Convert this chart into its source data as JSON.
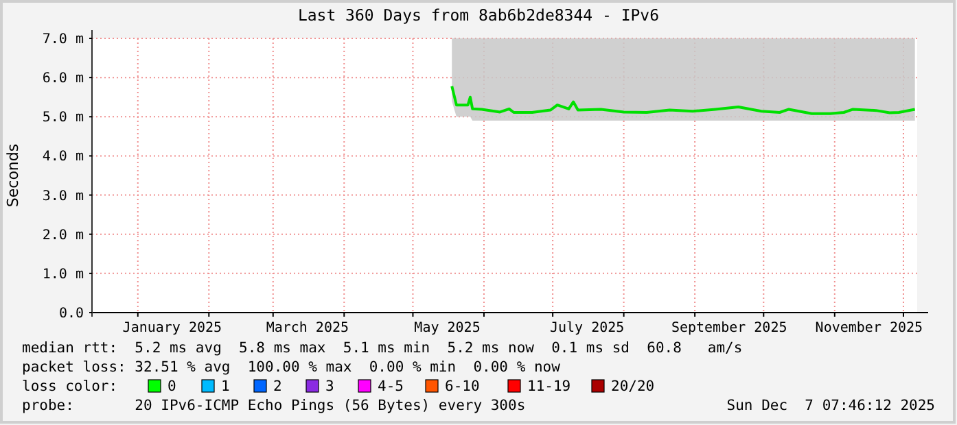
{
  "chart_data": {
    "type": "line",
    "title": "Last 360 Days from 8ab6b2de8344 - IPv6",
    "ylabel": "Seconds",
    "xlim": [
      "2024-12-12",
      "2025-12-07"
    ],
    "xticks": [
      {
        "value": "2025-01-01",
        "label": null
      },
      {
        "value": "2025-01-16",
        "label": "January 2025"
      },
      {
        "value": "2025-02-01",
        "label": null
      },
      {
        "value": "2025-03-01",
        "label": null
      },
      {
        "value": "2025-03-16",
        "label": "March 2025"
      },
      {
        "value": "2025-04-01",
        "label": null
      },
      {
        "value": "2025-05-01",
        "label": null
      },
      {
        "value": "2025-05-16",
        "label": "May 2025"
      },
      {
        "value": "2025-06-01",
        "label": null
      },
      {
        "value": "2025-07-01",
        "label": null
      },
      {
        "value": "2025-07-16",
        "label": "July 2025"
      },
      {
        "value": "2025-08-01",
        "label": null
      },
      {
        "value": "2025-09-01",
        "label": null
      },
      {
        "value": "2025-09-16",
        "label": "September 2025"
      },
      {
        "value": "2025-10-01",
        "label": null
      },
      {
        "value": "2025-11-01",
        "label": null
      },
      {
        "value": "2025-11-16",
        "label": "November 2025"
      },
      {
        "value": "2025-12-01",
        "label": null
      }
    ],
    "ylim": [
      0,
      7
    ],
    "yticks": [
      {
        "value": 0,
        "label": "0.0"
      },
      {
        "value": 1,
        "label": "1.0 m"
      },
      {
        "value": 2,
        "label": "2.0 m"
      },
      {
        "value": 3,
        "label": "3.0 m"
      },
      {
        "value": 4,
        "label": "4.0 m"
      },
      {
        "value": 5,
        "label": "5.0 m"
      },
      {
        "value": 6,
        "label": "6.0 m"
      },
      {
        "value": 7,
        "label": "7.0 m"
      }
    ],
    "grid": true,
    "line_style": "solid",
    "marker": "none",
    "x": [
      "2025-05-18",
      "2025-05-20",
      "2025-05-25",
      "2025-05-26",
      "2025-05-27",
      "2025-05-31",
      "2025-06-08",
      "2025-06-12",
      "2025-06-14",
      "2025-06-22",
      "2025-06-30",
      "2025-07-03",
      "2025-07-08",
      "2025-07-10",
      "2025-07-12",
      "2025-07-22",
      "2025-08-01",
      "2025-08-11",
      "2025-08-21",
      "2025-08-31",
      "2025-09-10",
      "2025-09-20",
      "2025-09-30",
      "2025-10-08",
      "2025-10-12",
      "2025-10-20",
      "2025-10-22",
      "2025-10-30",
      "2025-11-05",
      "2025-11-09",
      "2025-11-19",
      "2025-11-25",
      "2025-11-29",
      "2025-12-06"
    ],
    "series": [
      {
        "color": "#00e000",
        "values": [
          5.78,
          5.3,
          5.3,
          5.5,
          5.2,
          5.19,
          5.12,
          5.2,
          5.11,
          5.11,
          5.17,
          5.3,
          5.2,
          5.38,
          5.17,
          5.19,
          5.12,
          5.11,
          5.17,
          5.14,
          5.19,
          5.25,
          5.14,
          5.11,
          5.19,
          5.1,
          5.08,
          5.08,
          5.11,
          5.19,
          5.16,
          5.1,
          5.11,
          5.19
        ],
        "lower": [
          5.4,
          5.0,
          5.0,
          5.0,
          4.9,
          4.9,
          4.9,
          4.9,
          4.9,
          4.9,
          4.9,
          4.9,
          4.9,
          4.9,
          4.9,
          4.9,
          4.9,
          4.9,
          4.9,
          4.9,
          4.9,
          4.9,
          4.9,
          4.9,
          4.9,
          4.9,
          4.9,
          4.9,
          4.9,
          4.9,
          4.9,
          4.9,
          4.9,
          4.9
        ],
        "upper": [
          7,
          7,
          7,
          7,
          7,
          7,
          7,
          7,
          7,
          7,
          7,
          7,
          7,
          7,
          7,
          7,
          7,
          7,
          7,
          7,
          7,
          7,
          7,
          7,
          7,
          7,
          7,
          7,
          7,
          7,
          7,
          7,
          7,
          7
        ]
      }
    ],
    "annotations": [
      "median rtt:  5.2 ms avg  5.8 ms max  5.1 ms min  5.2 ms now  0.1 ms sd  60.8   am/s",
      "packet loss: 32.51 % avg  100.00 % max  0.00 % min  0.00 % now",
      "loss color:",
      "0",
      "1",
      "2",
      "3",
      "4-5",
      "6-10",
      "11-19",
      "20/20",
      "probe:       20 IPv6-ICMP Echo Pings (56 Bytes) every 300s",
      "Sun Dec  7 07:46:12 2025"
    ]
  }
}
